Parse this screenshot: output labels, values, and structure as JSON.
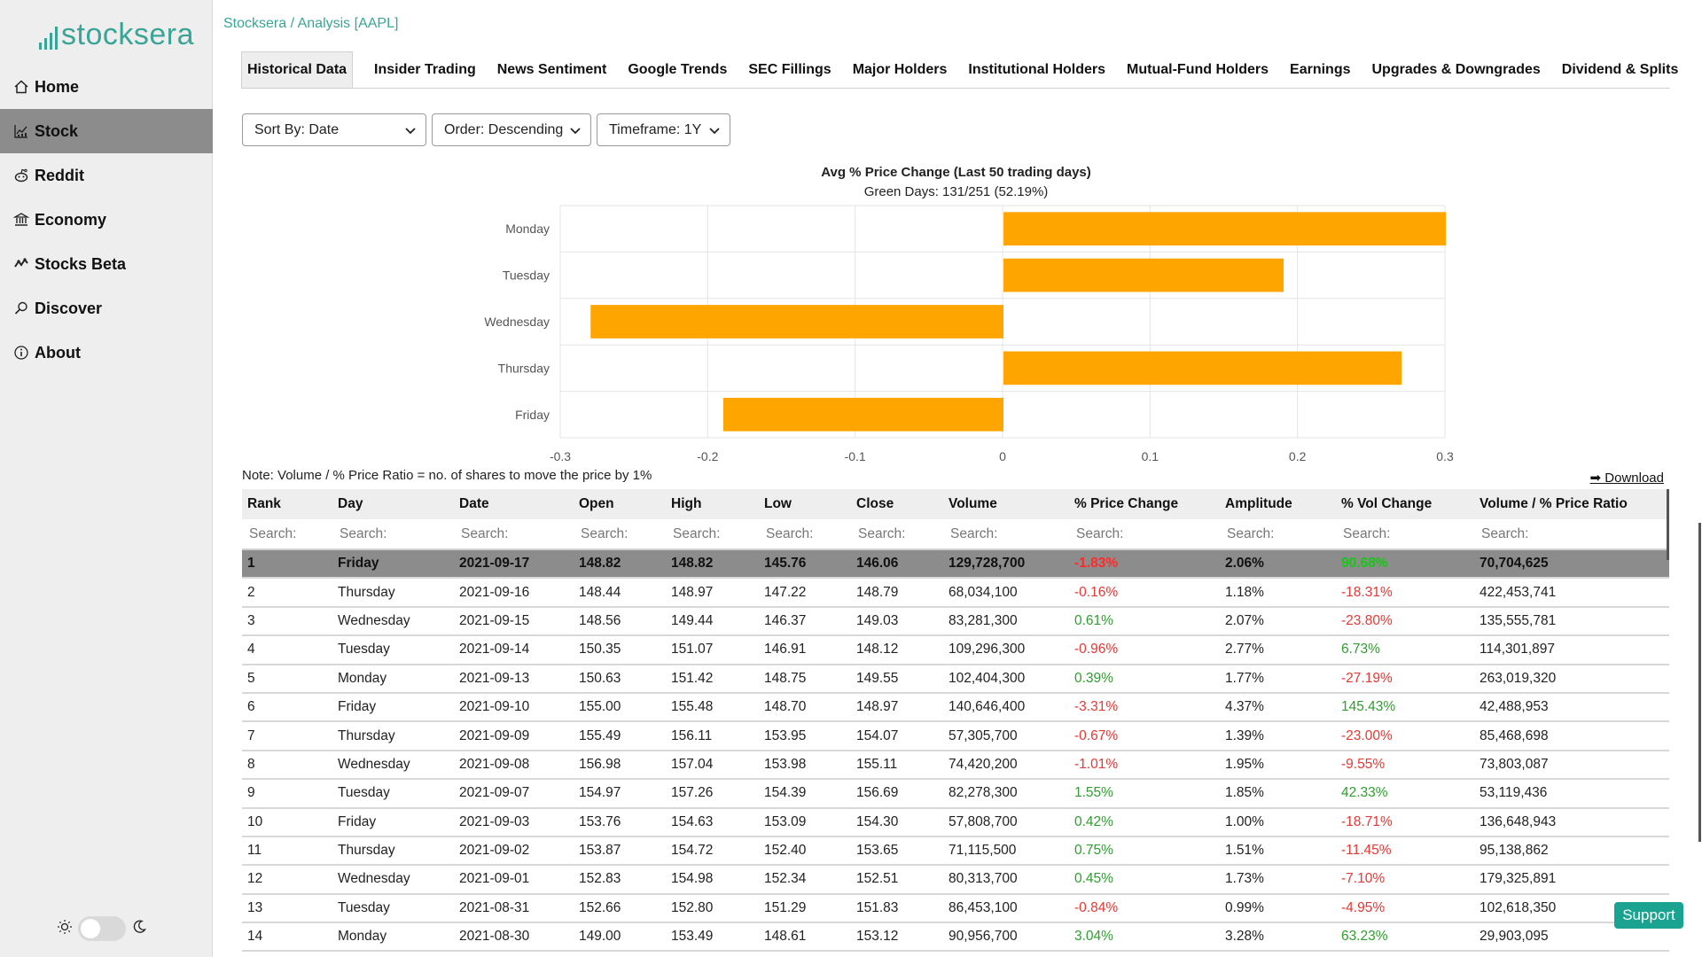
{
  "brand": {
    "logo_text": "stocksera",
    "accent": "#3aa597"
  },
  "breadcrumb": "Stocksera / Analysis [AAPL]",
  "sidebar": {
    "items": [
      {
        "label": "Home",
        "icon": "home-icon",
        "active": false
      },
      {
        "label": "Stock",
        "icon": "stock-chart-icon",
        "active": true
      },
      {
        "label": "Reddit",
        "icon": "reddit-icon",
        "active": false
      },
      {
        "label": "Economy",
        "icon": "bank-icon",
        "active": false
      },
      {
        "label": "Stocks Beta",
        "icon": "beta-icon",
        "active": false
      },
      {
        "label": "Discover",
        "icon": "search-icon",
        "active": false
      },
      {
        "label": "About",
        "icon": "info-icon",
        "active": false
      }
    ]
  },
  "tabs": [
    "Historical Data",
    "Insider Trading",
    "News Sentiment",
    "Google Trends",
    "SEC Fillings",
    "Major Holders",
    "Institutional Holders",
    "Mutual-Fund Holders",
    "Earnings",
    "Upgrades & Downgrades",
    "Dividend & Splits"
  ],
  "filters": {
    "sort_by": "Sort By: Date",
    "order": "Order: Descending",
    "timeframe": "Timeframe: 1Y"
  },
  "chart_data": {
    "type": "bar",
    "orientation": "horizontal",
    "title": "Avg % Price Change (Last 50 trading days)",
    "subtitle": "Green Days: 131/251 (52.19%)",
    "categories": [
      "Monday",
      "Tuesday",
      "Wednesday",
      "Thursday",
      "Friday"
    ],
    "values": [
      0.3,
      0.19,
      -0.28,
      0.27,
      -0.19
    ],
    "xlim": [
      -0.3,
      0.3
    ],
    "xticks": [
      "-0.3",
      "-0.2",
      "-0.1",
      "0",
      "0.1",
      "0.2",
      "0.3"
    ],
    "grid": true,
    "bar_color": "#ffa500"
  },
  "note": "Note: Volume / % Price Ratio = no. of shares to move the price by 1%",
  "download_label": "➡ Download",
  "table": {
    "columns": [
      "Rank",
      "Day",
      "Date",
      "Open",
      "High",
      "Low",
      "Close",
      "Volume",
      "% Price Change",
      "Amplitude",
      "% Vol Change",
      "Volume / % Price Ratio"
    ],
    "search_placeholder": "Search:",
    "rows": [
      [
        "1",
        "Friday",
        "2021-09-17",
        "148.82",
        "148.82",
        "145.76",
        "146.06",
        "129,728,700",
        "-1.83%",
        "2.06%",
        "90.68%",
        "70,704,625"
      ],
      [
        "2",
        "Thursday",
        "2021-09-16",
        "148.44",
        "148.97",
        "147.22",
        "148.79",
        "68,034,100",
        "-0.16%",
        "1.18%",
        "-18.31%",
        "422,453,741"
      ],
      [
        "3",
        "Wednesday",
        "2021-09-15",
        "148.56",
        "149.44",
        "146.37",
        "149.03",
        "83,281,300",
        "0.61%",
        "2.07%",
        "-23.80%",
        "135,555,781"
      ],
      [
        "4",
        "Tuesday",
        "2021-09-14",
        "150.35",
        "151.07",
        "146.91",
        "148.12",
        "109,296,300",
        "-0.96%",
        "2.77%",
        "6.73%",
        "114,301,897"
      ],
      [
        "5",
        "Monday",
        "2021-09-13",
        "150.63",
        "151.42",
        "148.75",
        "149.55",
        "102,404,300",
        "0.39%",
        "1.77%",
        "-27.19%",
        "263,019,320"
      ],
      [
        "6",
        "Friday",
        "2021-09-10",
        "155.00",
        "155.48",
        "148.70",
        "148.97",
        "140,646,400",
        "-3.31%",
        "4.37%",
        "145.43%",
        "42,488,953"
      ],
      [
        "7",
        "Thursday",
        "2021-09-09",
        "155.49",
        "156.11",
        "153.95",
        "154.07",
        "57,305,700",
        "-0.67%",
        "1.39%",
        "-23.00%",
        "85,468,698"
      ],
      [
        "8",
        "Wednesday",
        "2021-09-08",
        "156.98",
        "157.04",
        "153.98",
        "155.11",
        "74,420,200",
        "-1.01%",
        "1.95%",
        "-9.55%",
        "73,803,087"
      ],
      [
        "9",
        "Tuesday",
        "2021-09-07",
        "154.97",
        "157.26",
        "154.39",
        "156.69",
        "82,278,300",
        "1.55%",
        "1.85%",
        "42.33%",
        "53,119,436"
      ],
      [
        "10",
        "Friday",
        "2021-09-03",
        "153.76",
        "154.63",
        "153.09",
        "154.30",
        "57,808,700",
        "0.42%",
        "1.00%",
        "-18.71%",
        "136,648,943"
      ],
      [
        "11",
        "Thursday",
        "2021-09-02",
        "153.87",
        "154.72",
        "152.40",
        "153.65",
        "71,115,500",
        "0.75%",
        "1.51%",
        "-11.45%",
        "95,138,862"
      ],
      [
        "12",
        "Wednesday",
        "2021-09-01",
        "152.83",
        "154.98",
        "152.34",
        "152.51",
        "80,313,700",
        "0.45%",
        "1.73%",
        "-7.10%",
        "179,325,891"
      ],
      [
        "13",
        "Tuesday",
        "2021-08-31",
        "152.66",
        "152.80",
        "151.29",
        "151.83",
        "86,453,100",
        "-0.84%",
        "0.99%",
        "-4.95%",
        "102,618,350"
      ],
      [
        "14",
        "Monday",
        "2021-08-30",
        "149.00",
        "153.49",
        "148.61",
        "153.12",
        "90,956,700",
        "3.04%",
        "3.28%",
        "63.23%",
        "29,903,095"
      ]
    ]
  },
  "support_label": "Support"
}
